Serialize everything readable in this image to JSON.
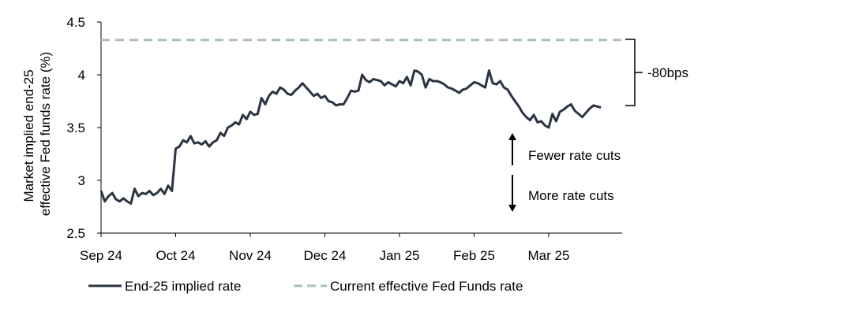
{
  "chart_data": {
    "type": "line",
    "title": "",
    "xlabel": "",
    "ylabel": "Market implied end-25 effective Fed funds rate (%)",
    "ylabel_lines": [
      "Market implied end-25",
      "effective Fed funds rate (%)"
    ],
    "ylim": [
      2.5,
      4.5
    ],
    "yticks": [
      {
        "value": 2.5,
        "label": "2.5"
      },
      {
        "value": 3,
        "label": "3"
      },
      {
        "value": 3.5,
        "label": "3.5"
      },
      {
        "value": 4,
        "label": "4"
      },
      {
        "value": 4.5,
        "label": "4.5"
      }
    ],
    "xlim": [
      0,
      138
    ],
    "xticks": [
      {
        "value": 0,
        "label": "Sep 24"
      },
      {
        "value": 20,
        "label": "Oct 24"
      },
      {
        "value": 40,
        "label": "Nov 24"
      },
      {
        "value": 60,
        "label": "Dec 24"
      },
      {
        "value": 80,
        "label": "Jan 25"
      },
      {
        "value": 100,
        "label": "Feb 25"
      },
      {
        "value": 120,
        "label": "Mar 25"
      }
    ],
    "series": [
      {
        "name": "End-25 implied rate",
        "style": "solid",
        "color": "#2b3442",
        "values": [
          2.9,
          2.8,
          2.85,
          2.88,
          2.82,
          2.8,
          2.83,
          2.8,
          2.78,
          2.92,
          2.85,
          2.88,
          2.87,
          2.9,
          2.86,
          2.88,
          2.92,
          2.87,
          2.95,
          2.9,
          3.3,
          3.32,
          3.38,
          3.36,
          3.42,
          3.35,
          3.36,
          3.34,
          3.37,
          3.32,
          3.36,
          3.38,
          3.45,
          3.42,
          3.5,
          3.52,
          3.55,
          3.53,
          3.62,
          3.58,
          3.65,
          3.62,
          3.63,
          3.78,
          3.72,
          3.8,
          3.84,
          3.82,
          3.88,
          3.86,
          3.82,
          3.81,
          3.85,
          3.88,
          3.92,
          3.88,
          3.84,
          3.8,
          3.82,
          3.78,
          3.8,
          3.75,
          3.74,
          3.71,
          3.72,
          3.72,
          3.78,
          3.85,
          3.84,
          3.85,
          4.0,
          3.95,
          3.93,
          3.96,
          3.95,
          3.94,
          3.9,
          3.93,
          3.91,
          3.89,
          3.94,
          3.92,
          3.98,
          3.9,
          4.04,
          4.03,
          4.0,
          3.88,
          3.96,
          3.94,
          3.94,
          3.93,
          3.91,
          3.88,
          3.87,
          3.85,
          3.83,
          3.86,
          3.87,
          3.9,
          3.93,
          3.92,
          3.9,
          3.88,
          4.04,
          3.92,
          3.91,
          3.94,
          3.88,
          3.86,
          3.8,
          3.75,
          3.7,
          3.64,
          3.6,
          3.57,
          3.62,
          3.55,
          3.56,
          3.52,
          3.5,
          3.63,
          3.56,
          3.65,
          3.67,
          3.7,
          3.72,
          3.66,
          3.63,
          3.6,
          3.64,
          3.68,
          3.71,
          3.7,
          3.69
        ]
      },
      {
        "name": "Current effective Fed Funds rate",
        "style": "dashed",
        "color": "#a9bfc6",
        "value": 4.33
      }
    ],
    "annotations": {
      "bracket_label": "-80bps",
      "fewer_cuts": "Fewer rate cuts",
      "more_cuts": "More rate cuts"
    },
    "legend": {
      "position": "bottom-left",
      "items": [
        {
          "label": "End-25 implied rate",
          "color": "#2b3442",
          "style": "solid"
        },
        {
          "label": "Current effective Fed Funds rate",
          "color": "#a9bfc6",
          "style": "dashed"
        }
      ]
    }
  }
}
